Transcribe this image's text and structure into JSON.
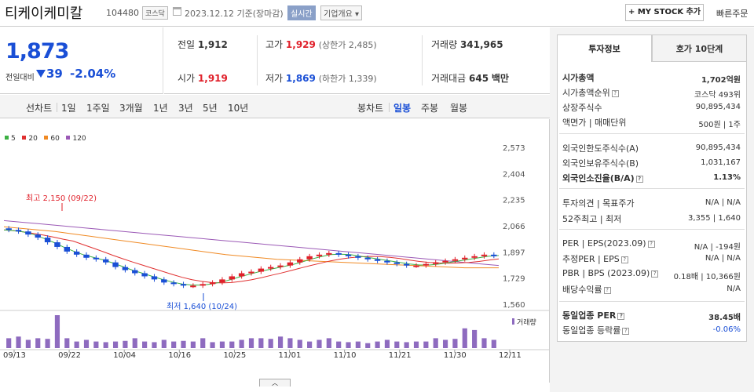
{
  "header": {
    "name": "티케이케미칼",
    "code": "104480",
    "market": "코스닥",
    "date": "2023.12.12 기준(장마감)",
    "realtime": "실시간",
    "corp": "기업개요",
    "mystock": "+ MY STOCK 추가",
    "quick": "빠른주문"
  },
  "price": {
    "current": "1,873",
    "cmp_label": "전일대비",
    "change": "39",
    "rate": "-2.04%"
  },
  "stats": {
    "prev_label": "전일",
    "prev": "1,912",
    "high_label": "고가",
    "high": "1,929",
    "upper": "(상한가 2,485)",
    "vol_label": "거래량",
    "vol": "341,965",
    "open_label": "시가",
    "open": "1,919",
    "low_label": "저가",
    "low": "1,869",
    "lower": "(하한가 1,339)",
    "amt_label": "거래대금",
    "amt": "645",
    "amt_unit": "백만"
  },
  "periods": {
    "line_label": "선차트",
    "line": [
      "1일",
      "1주일",
      "3개월",
      "1년",
      "3년",
      "5년",
      "10년"
    ],
    "candle_label": "봉차트",
    "candle": [
      "일봉",
      "주봉",
      "월봉"
    ],
    "active": "일봉"
  },
  "legend": [
    {
      "label": "5",
      "color": "#3cb043"
    },
    {
      "label": "20",
      "color": "#e03030"
    },
    {
      "label": "60",
      "color": "#f08a24"
    },
    {
      "label": "120",
      "color": "#9b59b6"
    }
  ],
  "colors": {
    "up": "#e0202a",
    "down": "#1a4fd6",
    "ma5": "#3cb043",
    "ma20": "#e03030",
    "ma60": "#f08a24",
    "ma120": "#9b59b6",
    "vol": "#8e6bbf"
  },
  "chart_data": {
    "type": "candlestick",
    "y_ticks": [
      2573,
      2404,
      2235,
      2066,
      1897,
      1729,
      1560
    ],
    "ylim": [
      1560,
      2573
    ],
    "x_labels": [
      "09/13",
      "09/22",
      "10/04",
      "10/16",
      "10/25",
      "11/01",
      "11/10",
      "11/21",
      "11/30",
      "12/11"
    ],
    "high_annotation": "최고 2,150 (09/22)",
    "low_annotation": "최저 1,640 (10/24)",
    "volume_label": "거래량",
    "ma120": [
      2100,
      2090,
      2080,
      2070,
      2060,
      2050,
      2040,
      2030,
      2020,
      2010,
      2000,
      1990,
      1980,
      1970,
      1960,
      1950,
      1940,
      1930,
      1920,
      1910,
      1900,
      1890,
      1880,
      1870,
      1860,
      1850,
      1840,
      1830,
      1820,
      1810
    ],
    "ma60": [
      2060,
      2050,
      2040,
      2030,
      2015,
      2000,
      1985,
      1970,
      1955,
      1940,
      1925,
      1910,
      1895,
      1880,
      1870,
      1860,
      1850,
      1845,
      1840,
      1835,
      1830,
      1825,
      1820,
      1815,
      1810,
      1805,
      1800,
      1795,
      1795,
      1795
    ],
    "close": [
      2040,
      2030,
      2010,
      1990,
      1960,
      1930,
      1900,
      1880,
      1860,
      1850,
      1830,
      1800,
      1780,
      1760,
      1740,
      1720,
      1700,
      1690,
      1680,
      1680,
      1690,
      1700,
      1720,
      1740,
      1760,
      1770,
      1790,
      1800,
      1810,
      1830,
      1850,
      1870,
      1880,
      1890,
      1880,
      1870,
      1860,
      1850,
      1840,
      1830,
      1820,
      1810,
      1810,
      1820,
      1830,
      1840,
      1850,
      1860,
      1870,
      1880,
      1873
    ],
    "volume_rel": [
      0.3,
      0.35,
      0.25,
      0.3,
      0.28,
      1,
      0.3,
      0.2,
      0.25,
      0.2,
      0.18,
      0.2,
      0.22,
      0.3,
      0.2,
      0.18,
      0.25,
      0.2,
      0.22,
      0.2,
      0.3,
      0.18,
      0.2,
      0.2,
      0.25,
      0.3,
      0.3,
      0.28,
      0.35,
      0.3,
      0.25,
      0.2,
      0.25,
      0.3,
      0.2,
      0.18,
      0.2,
      0.15,
      0.2,
      0.25,
      0.2,
      0.18,
      0.2,
      0.2,
      0.3,
      0.25,
      0.28,
      0.6,
      0.55,
      0.3,
      0.25
    ]
  },
  "tabs": {
    "t1": "투자정보",
    "t2": "호가 10단계"
  },
  "invest": {
    "cap_label": "시가총액",
    "cap": "1,702억원",
    "rank_label": "시가총액순위",
    "rank": "코스닥 493위",
    "shares_label": "상장주식수",
    "shares": "90,895,434",
    "par_label": "액면가 | 매매단위",
    "par": "500원 | 1주",
    "flimit_label": "외국인한도주식수(A)",
    "flimit": "90,895,434",
    "fhold_label": "외국인보유주식수(B)",
    "fhold": "1,031,167",
    "fratio_label": "외국인소진율(B/A)",
    "fratio": "1.13%",
    "opinion_label": "투자의견 | 목표주가",
    "opinion": "N/A | N/A",
    "w52_label": "52주최고 | 최저",
    "w52": "3,355 | 1,640",
    "per_label": "PER | EPS(2023.09)",
    "per": "N/A | -194원",
    "eper_label": "추정PER | EPS",
    "eper": "N/A | N/A",
    "pbr_label": "PBR | BPS (2023.09)",
    "pbr": "0.18배 | 10,366원",
    "div_label": "배당수익률",
    "div": "N/A",
    "iper_label": "동일업종 PER",
    "iper": "38.45배",
    "irate_label": "동일업종 등락률",
    "irate": "-0.06%"
  }
}
